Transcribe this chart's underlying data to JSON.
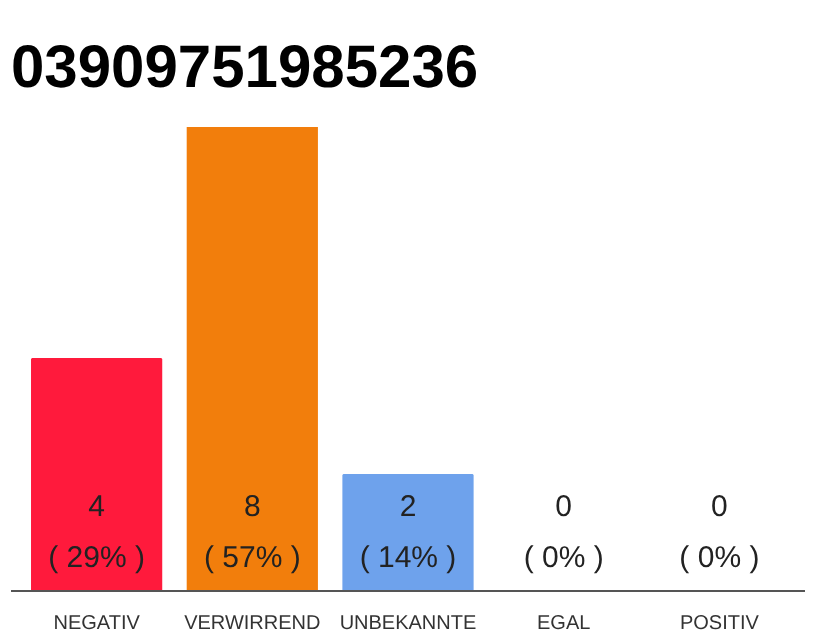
{
  "chart_data": {
    "type": "bar",
    "title": "03909751985236",
    "categories": [
      "NEGATIV",
      "VERWIRREND",
      "UNBEKANNTE",
      "EGAL",
      "POSITIV"
    ],
    "values": [
      4,
      8,
      2,
      0,
      0
    ],
    "colors": [
      "#ff1a3c",
      "#f27e0c",
      "#6ea2ec",
      "#cccccc",
      "#cccccc"
    ],
    "value_labels": [
      "4\n( 29% )",
      "8\n( 57% )",
      "2\n( 14% )",
      "0\n( 0% )",
      "0\n( 0% )"
    ],
    "ylim": [
      0,
      8
    ],
    "tick_labels": "x",
    "grid": false
  }
}
